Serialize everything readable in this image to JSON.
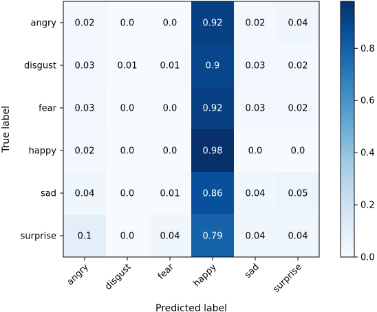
{
  "chart_data": {
    "type": "heatmap",
    "title": "",
    "xlabel": "Predicted label",
    "ylabel": "True label",
    "x_categories": [
      "angry",
      "disgust",
      "fear",
      "happy",
      "sad",
      "surprise"
    ],
    "y_categories": [
      "angry",
      "disgust",
      "fear",
      "happy",
      "sad",
      "surprise"
    ],
    "values": [
      [
        0.02,
        0.0,
        0.0,
        0.92,
        0.02,
        0.04
      ],
      [
        0.03,
        0.01,
        0.01,
        0.9,
        0.03,
        0.02
      ],
      [
        0.03,
        0.0,
        0.0,
        0.92,
        0.03,
        0.02
      ],
      [
        0.02,
        0.0,
        0.0,
        0.98,
        0.0,
        0.0
      ],
      [
        0.04,
        0.0,
        0.01,
        0.86,
        0.04,
        0.05
      ],
      [
        0.1,
        0.0,
        0.04,
        0.79,
        0.04,
        0.04
      ]
    ],
    "value_labels": [
      [
        "0.02",
        "0.0",
        "0.0",
        "0.92",
        "0.02",
        "0.04"
      ],
      [
        "0.03",
        "0.01",
        "0.01",
        "0.9",
        "0.03",
        "0.02"
      ],
      [
        "0.03",
        "0.0",
        "0.0",
        "0.92",
        "0.03",
        "0.02"
      ],
      [
        "0.02",
        "0.0",
        "0.0",
        "0.98",
        "0.0",
        "0.0"
      ],
      [
        "0.04",
        "0.0",
        "0.01",
        "0.86",
        "0.04",
        "0.05"
      ],
      [
        "0.1",
        "0.0",
        "0.04",
        "0.79",
        "0.04",
        "0.04"
      ]
    ],
    "colormap": "Blues",
    "colorbar": {
      "range": [
        0.0,
        0.98
      ],
      "ticks": [
        0.0,
        0.2,
        0.4,
        0.6,
        0.8
      ],
      "tick_labels": [
        "0.0",
        "0.2",
        "0.4",
        "0.6",
        "0.8"
      ]
    },
    "grid": false
  }
}
